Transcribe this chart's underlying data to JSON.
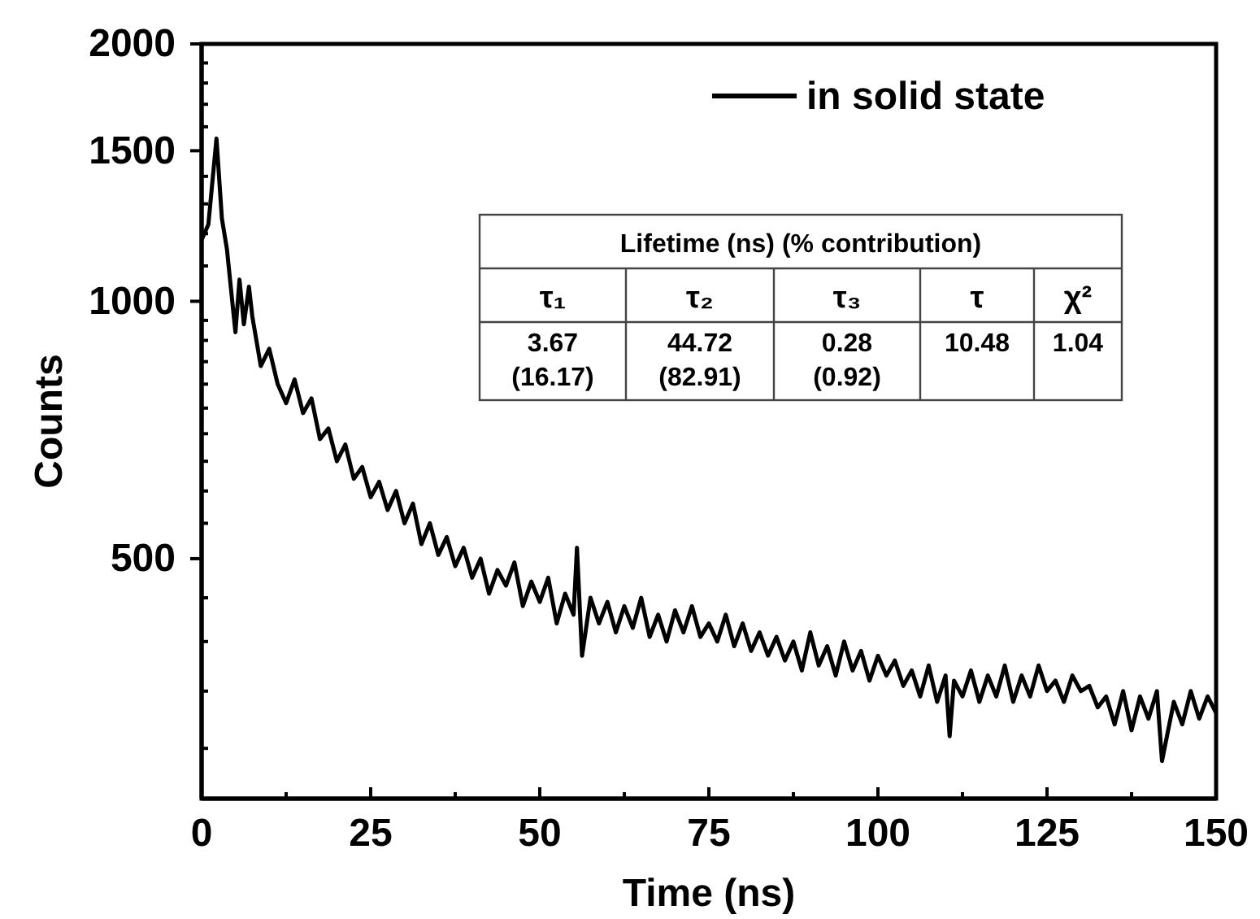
{
  "chart_data": {
    "type": "line",
    "xlabel": "Time (ns)",
    "ylabel": "Counts",
    "log": "y",
    "xlim": [
      0,
      150
    ],
    "xticks": [
      0,
      {
        "value": 12.5,
        "label": null
      },
      25,
      {
        "value": 37.5,
        "label": null
      },
      50,
      {
        "value": 62.5,
        "label": null
      },
      75,
      {
        "value": 87.5,
        "label": null
      },
      100,
      {
        "value": 112.5,
        "label": null
      },
      125,
      {
        "value": 137.5,
        "label": null
      },
      150
    ],
    "ylim": [
      262,
      2000
    ],
    "yticks": [
      {
        "value": 300,
        "label": null
      },
      {
        "value": 350,
        "label": null
      },
      {
        "value": 400,
        "label": null
      },
      {
        "value": 450,
        "label": null
      },
      500,
      {
        "value": 550,
        "label": null
      },
      {
        "value": 600,
        "label": null
      },
      {
        "value": 650,
        "label": null
      },
      {
        "value": 700,
        "label": null
      },
      {
        "value": 750,
        "label": null
      },
      {
        "value": 800,
        "label": null
      },
      {
        "value": 850,
        "label": null
      },
      {
        "value": 900,
        "label": null
      },
      {
        "value": 950,
        "label": null
      },
      1000,
      {
        "value": 1100,
        "label": null
      },
      {
        "value": 1200,
        "label": null
      },
      {
        "value": 1300,
        "label": null
      },
      {
        "value": 1400,
        "label": null
      },
      1500,
      {
        "value": 1600,
        "label": null
      },
      {
        "value": 1700,
        "label": null
      },
      {
        "value": 1800,
        "label": null
      },
      {
        "value": 1900,
        "label": null
      },
      2000
    ],
    "legend": "top right",
    "line_style": "solid",
    "series": [
      {
        "name": "in solid state",
        "color": "#000000",
        "x": [
          0,
          1,
          2.2,
          3,
          3.75,
          5,
          5.6,
          6.25,
          7,
          7.5,
          8.75,
          10,
          11.25,
          12.5,
          13.75,
          15,
          16.25,
          17.5,
          18.75,
          20,
          21.25,
          22.5,
          23.75,
          25,
          26.25,
          27.5,
          28.75,
          30,
          31.25,
          32.5,
          33.75,
          35,
          36.25,
          37.5,
          38.75,
          40,
          41.25,
          42.5,
          43.75,
          45,
          46.25,
          47.5,
          48.75,
          50,
          51.25,
          52.5,
          53.75,
          55,
          55.5,
          56.25,
          57.5,
          58.75,
          60,
          61.25,
          62.5,
          63.75,
          65,
          66.25,
          67.5,
          68.75,
          70,
          71.25,
          72.5,
          73.75,
          75,
          76.25,
          77.5,
          78.75,
          80,
          81.25,
          82.5,
          83.75,
          85,
          86.25,
          87.5,
          88.75,
          90,
          91.25,
          92.5,
          93.75,
          95,
          96.25,
          97.5,
          98.75,
          100,
          101.25,
          102.5,
          103.75,
          105,
          106.25,
          107.5,
          108.75,
          110,
          110.6,
          111.25,
          112.5,
          113.75,
          115,
          116.25,
          117.5,
          118.75,
          120,
          121.25,
          122.5,
          123.75,
          125,
          126.25,
          127.5,
          128.75,
          130,
          131.25,
          132.5,
          133.75,
          135,
          136.25,
          137.5,
          138.75,
          140,
          141.25,
          142,
          143.75,
          145,
          146.25,
          147.5,
          148.75,
          150
        ],
        "values": [
          1180,
          1230,
          1550,
          1250,
          1150,
          920,
          1060,
          940,
          1040,
          960,
          840,
          880,
          800,
          760,
          810,
          740,
          770,
          690,
          710,
          650,
          680,
          620,
          640,
          590,
          615,
          570,
          600,
          550,
          580,
          520,
          550,
          505,
          530,
          490,
          515,
          475,
          500,
          455,
          485,
          465,
          495,
          440,
          470,
          445,
          475,
          420,
          455,
          430,
          515,
          385,
          450,
          420,
          445,
          410,
          440,
          415,
          450,
          405,
          430,
          400,
          435,
          410,
          440,
          405,
          420,
          400,
          430,
          395,
          420,
          390,
          410,
          385,
          405,
          380,
          400,
          370,
          410,
          375,
          395,
          365,
          400,
          370,
          390,
          360,
          385,
          365,
          380,
          355,
          370,
          345,
          375,
          340,
          365,
          310,
          360,
          345,
          370,
          340,
          365,
          345,
          375,
          340,
          365,
          345,
          375,
          350,
          360,
          340,
          365,
          350,
          355,
          335,
          345,
          320,
          350,
          315,
          345,
          325,
          350,
          290,
          340,
          320,
          350,
          325,
          345,
          330
        ]
      }
    ],
    "annotations": [
      "Lifetime (ns) (% contribution)",
      "τ₁",
      "τ₂",
      "τ₃",
      "τ",
      "χ²",
      "3.67 (16.17)",
      "44.72 (82.91)",
      "0.28 (0.92)",
      "10.48",
      "1.04"
    ]
  }
}
